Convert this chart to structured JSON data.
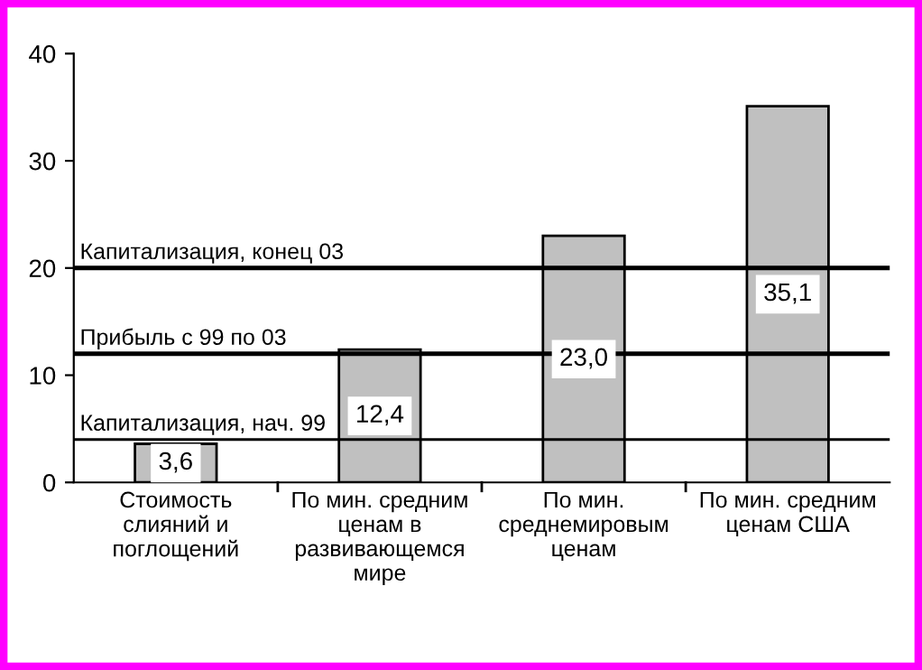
{
  "chart_data": {
    "type": "bar",
    "categories": [
      "Стоимость\nслияний и\nпоглощений",
      "По мин. средним\nценам в\nразвивающемся\nмире",
      "По мин.\nсреднемировым\nценам",
      "По мин. средним\nценам США"
    ],
    "values": [
      3.6,
      12.4,
      23.0,
      35.1
    ],
    "value_labels": [
      "3,6",
      "12,4",
      "23,0",
      "35,1"
    ],
    "color": "#c0c0c0",
    "ylim": [
      0,
      40
    ],
    "yticks": [
      0,
      10,
      20,
      30,
      40
    ],
    "grid": false,
    "ref_lines": [
      {
        "axis": "y",
        "value": 20,
        "label": "Капитализация, конец 03",
        "color": "#000000"
      },
      {
        "axis": "y",
        "value": 12,
        "label": "Прибыль с 99 по 03",
        "color": "#000000"
      },
      {
        "axis": "y",
        "value": 4,
        "label": "Капитализация, нач. 99",
        "color": "#000000"
      }
    ]
  }
}
